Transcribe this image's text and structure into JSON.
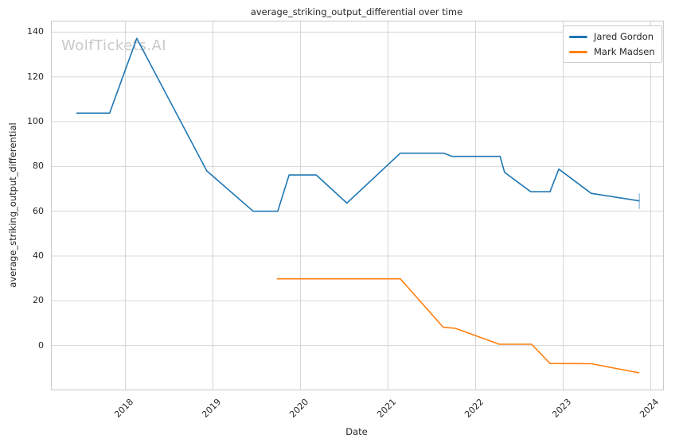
{
  "watermark": {
    "text": "WolfTickets.AI"
  },
  "colors": {
    "background": "#ffffff",
    "grid": "#d6d6d6",
    "spine": "#cccccc",
    "text": "#262626",
    "watermark": "#c9c9c9",
    "series_blue": "#1f77b4",
    "series_orange": "#ff7f0e"
  },
  "chart_data": {
    "type": "line",
    "title": "average_striking_output_differential over time",
    "xlabel": "Date",
    "ylabel": "average_striking_output_differential",
    "grid": true,
    "legend_position": "upper right",
    "xlim": [
      2017.15,
      2024.15
    ],
    "ylim": [
      -20,
      145.1
    ],
    "x_ticks": [
      2018,
      2019,
      2020,
      2021,
      2022,
      2023,
      2024
    ],
    "y_ticks": [
      0,
      20,
      40,
      60,
      80,
      100,
      120,
      140
    ],
    "series": [
      {
        "name": "Jared Gordon",
        "color": "#1f77b4",
        "points": [
          [
            2017.44,
            103.8
          ],
          [
            2017.82,
            103.8
          ],
          [
            2018.13,
            137.2
          ],
          [
            2018.93,
            78.0
          ],
          [
            2019.46,
            60.0
          ],
          [
            2019.74,
            60.0
          ],
          [
            2019.87,
            76.2
          ],
          [
            2020.18,
            76.2
          ],
          [
            2020.53,
            63.6
          ],
          [
            2021.14,
            85.9
          ],
          [
            2021.64,
            85.9
          ],
          [
            2021.73,
            84.5
          ],
          [
            2022.28,
            84.5
          ],
          [
            2022.33,
            77.4
          ],
          [
            2022.63,
            68.7
          ],
          [
            2022.85,
            68.7
          ],
          [
            2022.95,
            78.8
          ],
          [
            2023.32,
            68.0
          ],
          [
            2023.87,
            64.6
          ]
        ],
        "end_cap": {
          "x": 2023.87,
          "y_from": 61.0,
          "y_to": 68.0
        }
      },
      {
        "name": "Mark Madsen",
        "color": "#ff7f0e",
        "points": [
          [
            2019.73,
            29.8
          ],
          [
            2021.14,
            29.8
          ],
          [
            2021.63,
            8.2
          ],
          [
            2021.77,
            7.7
          ],
          [
            2022.27,
            0.6
          ],
          [
            2022.64,
            0.6
          ],
          [
            2022.85,
            -8.0
          ],
          [
            2023.32,
            -8.1
          ],
          [
            2023.87,
            -12.2
          ]
        ]
      }
    ]
  }
}
